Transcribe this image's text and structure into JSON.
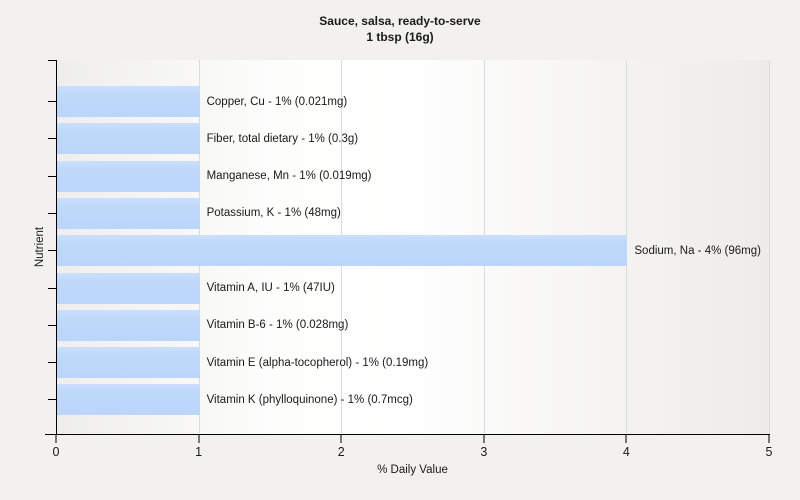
{
  "chart_data": {
    "type": "bar",
    "orientation": "horizontal",
    "title": "Sauce, salsa, ready-to-serve",
    "subtitle": "1 tbsp (16g)",
    "xlabel": "% Daily Value",
    "ylabel": "Nutrient",
    "xlim": [
      0,
      5
    ],
    "xticks": [
      "0",
      "1",
      "2",
      "3",
      "4",
      "5"
    ],
    "grid": "vertical-gridlines-on",
    "legend_position": "none",
    "colors": {
      "page_background": "#f2f1ef",
      "bar_fill": "#bed8fa",
      "gridline": "#dcdcda",
      "axis": "#000000",
      "text": "#1a1a1a"
    },
    "categories": [
      "Copper, Cu",
      "Fiber, total dietary",
      "Manganese, Mn",
      "Potassium, K",
      "Sodium, Na",
      "Vitamin A, IU",
      "Vitamin B-6",
      "Vitamin E (alpha-tocopherol)",
      "Vitamin K (phylloquinone)"
    ],
    "values": [
      1,
      1,
      1,
      1,
      4,
      1,
      1,
      1,
      1
    ],
    "bars": [
      {
        "label": "Copper, Cu - 1% (0.021mg)",
        "value": 1
      },
      {
        "label": "Fiber, total dietary - 1% (0.3g)",
        "value": 1
      },
      {
        "label": "Manganese, Mn - 1% (0.019mg)",
        "value": 1
      },
      {
        "label": "Potassium, K - 1% (48mg)",
        "value": 1
      },
      {
        "label": "Sodium, Na - 4% (96mg)",
        "value": 4
      },
      {
        "label": "Vitamin A, IU - 1% (47IU)",
        "value": 1
      },
      {
        "label": "Vitamin B-6 - 1% (0.028mg)",
        "value": 1
      },
      {
        "label": "Vitamin E (alpha-tocopherol) - 1% (0.19mg)",
        "value": 1
      },
      {
        "label": "Vitamin K (phylloquinone) - 1% (0.7mcg)",
        "value": 1
      }
    ]
  }
}
